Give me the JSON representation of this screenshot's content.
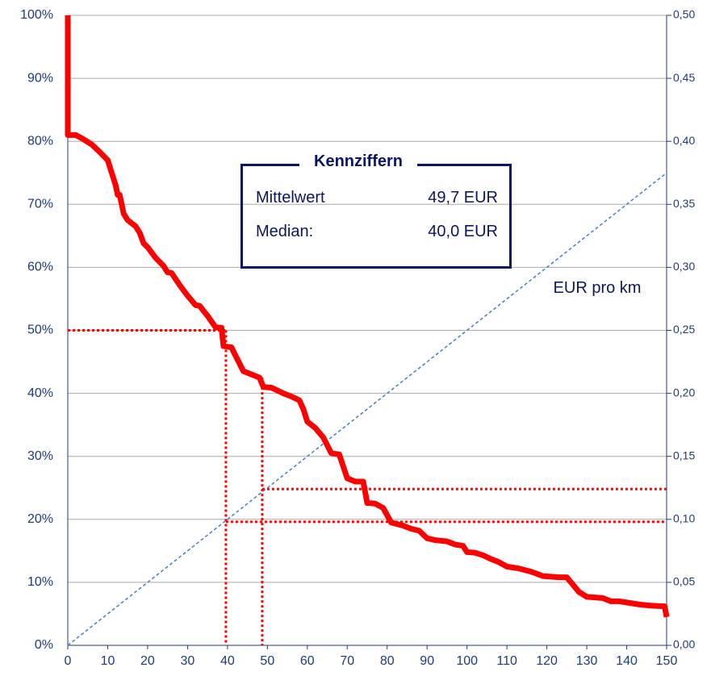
{
  "chart_data": {
    "type": "line",
    "xlim": [
      0,
      150
    ],
    "xticks": [
      0,
      10,
      20,
      30,
      40,
      50,
      60,
      70,
      80,
      90,
      100,
      110,
      120,
      130,
      140,
      150
    ],
    "ylim": [
      0,
      100
    ],
    "yticks": [
      {
        "value": 0,
        "label": "0%"
      },
      {
        "value": 10,
        "label": "10%"
      },
      {
        "value": 20,
        "label": "20%"
      },
      {
        "value": 30,
        "label": "30%"
      },
      {
        "value": 40,
        "label": "40%"
      },
      {
        "value": 50,
        "label": "50%"
      },
      {
        "value": 60,
        "label": "60%"
      },
      {
        "value": 70,
        "label": "70%"
      },
      {
        "value": 80,
        "label": "80%"
      },
      {
        "value": 90,
        "label": "90%"
      },
      {
        "value": 100,
        "label": "100%"
      }
    ],
    "y2lim": [
      0,
      0.5
    ],
    "y2ticks": [
      {
        "value": 0,
        "label": "0,00"
      },
      {
        "value": 0.05,
        "label": "0,05"
      },
      {
        "value": 0.1,
        "label": "0,10"
      },
      {
        "value": 0.15,
        "label": "0,15"
      },
      {
        "value": 0.2,
        "label": "0,20"
      },
      {
        "value": 0.25,
        "label": "0,25"
      },
      {
        "value": 0.3,
        "label": "0,30"
      },
      {
        "value": 0.35,
        "label": "0,35"
      },
      {
        "value": 0.4,
        "label": "0,40"
      },
      {
        "value": 0.45,
        "label": "0,45"
      },
      {
        "value": 0.5,
        "label": "0,50"
      }
    ],
    "grid": true,
    "series": [
      {
        "color": "#ff0000",
        "x": [
          0,
          0,
          2,
          4,
          6,
          8,
          10,
          11,
          12,
          12.5,
          13,
          14,
          15,
          17,
          18,
          19,
          20,
          22,
          24,
          25,
          26,
          28,
          30,
          32,
          33,
          35,
          37,
          38.5,
          39,
          41,
          42,
          44,
          46,
          48,
          49,
          51,
          54,
          56,
          58,
          59,
          60,
          62,
          64,
          66,
          68,
          70,
          72,
          74,
          75,
          77,
          79,
          81,
          84,
          86,
          88,
          90,
          92,
          95,
          97,
          99,
          100,
          102,
          104,
          106,
          108,
          110,
          113,
          116,
          119,
          123,
          125,
          128,
          130,
          134,
          136,
          138,
          140,
          143,
          146,
          149.5,
          150
        ],
        "values": [
          100,
          81,
          81,
          80.3,
          79.5,
          78.3,
          77,
          75,
          73,
          71.5,
          71.5,
          68.5,
          67.5,
          66.5,
          65.5,
          63.8,
          63.2,
          61.5,
          60.2,
          59.2,
          59.1,
          57.2,
          55.5,
          54,
          53.9,
          52.3,
          50.5,
          50.4,
          47.5,
          47.3,
          46,
          43.5,
          43,
          42.5,
          41,
          40.9,
          40,
          39.5,
          38.9,
          37.5,
          35.5,
          34.5,
          33,
          30.5,
          30.3,
          26.5,
          26,
          26,
          22.6,
          22.5,
          21.8,
          19.5,
          19,
          18.5,
          18.2,
          17,
          16.7,
          16.5,
          16,
          15.8,
          14.8,
          14.7,
          14.3,
          13.7,
          13.2,
          12.5,
          12.2,
          11.7,
          11,
          10.8,
          10.8,
          8.5,
          7.7,
          7.5,
          7,
          7,
          6.8,
          6.5,
          6.3,
          6.2,
          4.5
        ]
      },
      {
        "name": "EUR pro km",
        "color": "#4a7cc4",
        "axis": "y2",
        "dashed": true,
        "x": [
          0,
          150
        ],
        "values": [
          0,
          0.375
        ]
      }
    ],
    "reference_lines": [
      {
        "x": [
          0,
          39.6
        ],
        "y": [
          50,
          50
        ]
      },
      {
        "x": [
          39.6,
          39.6
        ],
        "y": [
          50,
          0
        ]
      },
      {
        "x": [
          48.7,
          48.7
        ],
        "y": [
          42.5,
          0
        ]
      },
      {
        "x": [
          48.7,
          150
        ],
        "y": [
          24.8,
          24.8
        ]
      },
      {
        "x": [
          39.6,
          150
        ],
        "y": [
          19.6,
          19.6
        ]
      }
    ],
    "reference_color": "#ff0000",
    "annotation_box": {
      "title": "Kennziffern",
      "rows": [
        [
          "Mittelwert",
          "49,7 EUR"
        ],
        [
          "Median:",
          "40,0 EUR"
        ]
      ]
    }
  }
}
